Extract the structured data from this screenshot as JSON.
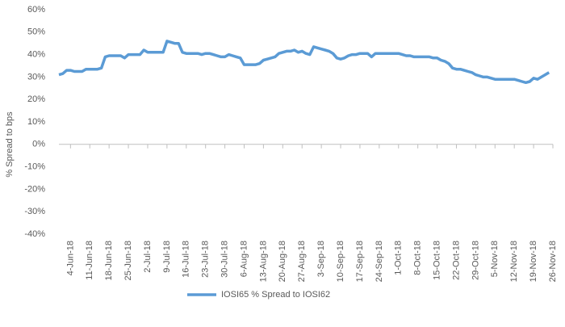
{
  "chart_data": {
    "type": "line",
    "y_label": "% Spread to bps",
    "categories": [
      null,
      null,
      null,
      "4-Jun-18",
      null,
      null,
      null,
      null,
      "11-Jun-18",
      null,
      null,
      null,
      null,
      "18-Jun-18",
      null,
      null,
      null,
      null,
      "25-Jun-18",
      null,
      null,
      null,
      null,
      "2-Jul-18",
      null,
      null,
      null,
      null,
      "9-Jul-18",
      null,
      null,
      null,
      null,
      "16-Jul-18",
      null,
      null,
      null,
      null,
      "23-Jul-18",
      null,
      null,
      null,
      null,
      "30-Jul-18",
      null,
      null,
      null,
      null,
      "6-Aug-18",
      null,
      null,
      null,
      null,
      "13-Aug-18",
      null,
      null,
      null,
      null,
      "20-Aug-18",
      null,
      null,
      null,
      null,
      "27-Aug-18",
      null,
      null,
      null,
      null,
      "3-Sep-18",
      null,
      null,
      null,
      null,
      "10-Sep-18",
      null,
      null,
      null,
      null,
      "17-Sep-18",
      null,
      null,
      null,
      null,
      "24-Sep-18",
      null,
      null,
      null,
      null,
      "1-Oct-18",
      null,
      null,
      null,
      null,
      "8-Oct-18",
      null,
      null,
      null,
      null,
      "15-Oct-18",
      null,
      null,
      null,
      null,
      "22-Oct-18",
      null,
      null,
      null,
      null,
      "29-Oct-18",
      null,
      null,
      null,
      null,
      "5-Nov-18",
      null,
      null,
      null,
      null,
      "12-Nov-18",
      null,
      null,
      null,
      null,
      "19-Nov-18",
      null,
      null,
      null,
      null,
      "26-Nov-18"
    ],
    "series": [
      {
        "name": "IOSI65 % Spread to IOSI62",
        "color": "#5b9bd5",
        "values": [
          31,
          31.5,
          33,
          33,
          32.5,
          32.5,
          32.5,
          33.5,
          33.5,
          33.5,
          33.5,
          34,
          39,
          39.5,
          39.5,
          39.5,
          39.5,
          38.5,
          40,
          40,
          40,
          40,
          42,
          41,
          41,
          41,
          41,
          41,
          46,
          45.5,
          45,
          45,
          41,
          40.5,
          40.5,
          40.5,
          40.5,
          40,
          40.5,
          40.5,
          40,
          39.5,
          39,
          39,
          40,
          39.5,
          39,
          38.5,
          35.5,
          35.5,
          35.5,
          35.5,
          36,
          37.5,
          38,
          38.5,
          39,
          40.5,
          41,
          41.5,
          41.5,
          42,
          41,
          41.5,
          40.5,
          40,
          43.5,
          43,
          42.5,
          42,
          41.5,
          40.5,
          38.5,
          38,
          38.5,
          39.5,
          40,
          40,
          40.5,
          40.5,
          40.5,
          39,
          40.5,
          40.5,
          40.5,
          40.5,
          40.5,
          40.5,
          40.5,
          40,
          39.5,
          39.5,
          39,
          39,
          39,
          39,
          39,
          38.5,
          38.5,
          37.5,
          37,
          36,
          34,
          33.5,
          33.5,
          33,
          32.5,
          32,
          31,
          30.5,
          30,
          30,
          29.5,
          29,
          29,
          29,
          29,
          29,
          29,
          28.5,
          28,
          27.5,
          28,
          29.5,
          29,
          30,
          31,
          32,
          null
        ]
      }
    ],
    "ylim": [
      -40,
      60
    ],
    "yticks": [
      {
        "value": -40,
        "label": "-40%"
      },
      {
        "value": -30,
        "label": "-30%"
      },
      {
        "value": -20,
        "label": "-20%"
      },
      {
        "value": -10,
        "label": "-10%"
      },
      {
        "value": 0,
        "label": "0%"
      },
      {
        "value": 10,
        "label": "10%"
      },
      {
        "value": 20,
        "label": "20%"
      },
      {
        "value": 30,
        "label": "30%"
      },
      {
        "value": 40,
        "label": "40%"
      },
      {
        "value": 50,
        "label": "50%"
      },
      {
        "value": 60,
        "label": "60%"
      }
    ],
    "grid": false,
    "legend": "bottom"
  }
}
